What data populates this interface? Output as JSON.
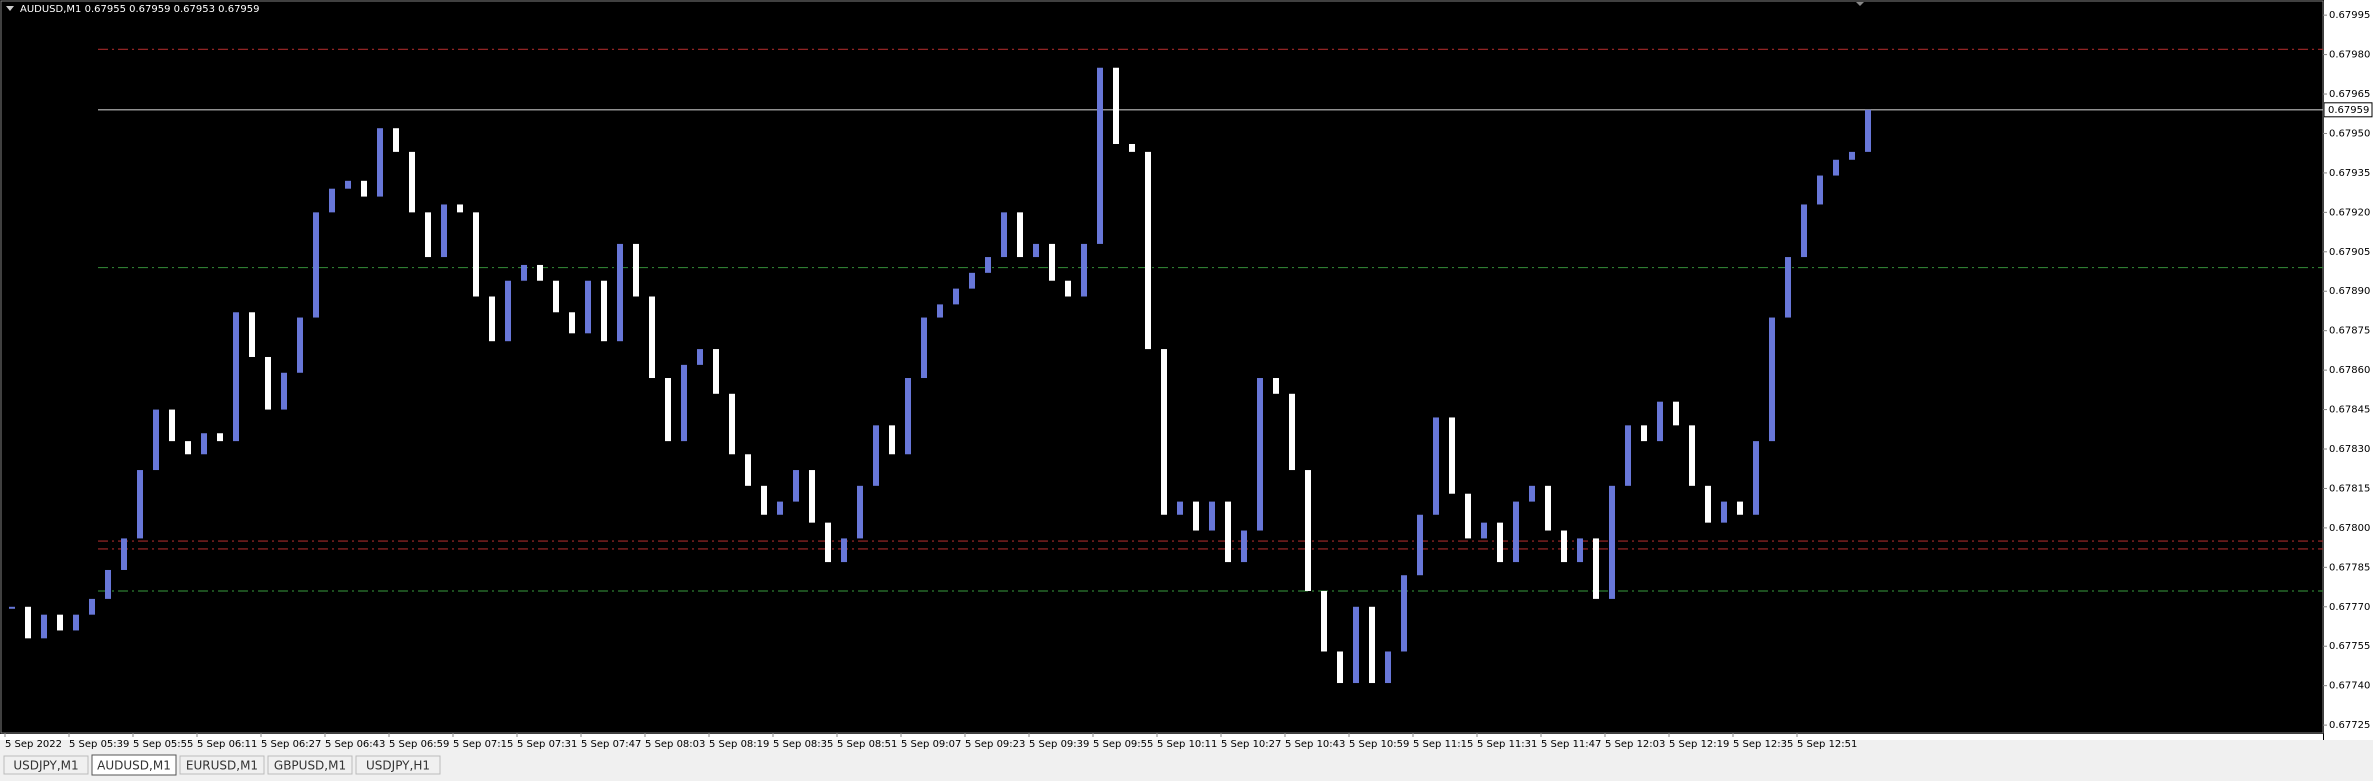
{
  "chart_data": {
    "type": "ohlc",
    "header": "AUDUSD,M1  0.67955 0.67959 0.67953 0.67959",
    "categories": [
      "5 Sep 2022",
      null,
      null,
      null,
      "5 Sep 05:39",
      null,
      null,
      null,
      "5 Sep 05:55",
      null,
      null,
      null,
      "5 Sep 06:11",
      null,
      null,
      null,
      "5 Sep 06:27",
      null,
      null,
      null,
      "5 Sep 06:43",
      null,
      null,
      null,
      "5 Sep 06:59",
      null,
      null,
      null,
      "5 Sep 07:15",
      null,
      null,
      null,
      "5 Sep 07:31",
      null,
      null,
      null,
      "5 Sep 07:47",
      null,
      null,
      null,
      "5 Sep 08:03",
      null,
      null,
      null,
      "5 Sep 08:19",
      null,
      null,
      null,
      "5 Sep 08:35",
      null,
      null,
      null,
      "5 Sep 08:51",
      null,
      null,
      null,
      "5 Sep 09:07",
      null,
      null,
      null,
      "5 Sep 09:23",
      null,
      null,
      null,
      "5 Sep 09:39",
      null,
      null,
      null,
      "5 Sep 09:55",
      null,
      null,
      null,
      "5 Sep 10:11",
      null,
      null,
      null,
      "5 Sep 10:27",
      null,
      null,
      null,
      "5 Sep 10:43",
      null,
      null,
      null,
      "5 Sep 10:59",
      null,
      null,
      null,
      "5 Sep 11:15",
      null,
      null,
      null,
      "5 Sep 11:31",
      null,
      null,
      null,
      "5 Sep 11:47",
      null,
      null,
      null,
      "5 Sep 12:03",
      null,
      null,
      null,
      "5 Sep 12:19",
      null,
      null,
      null,
      "5 Sep 12:35",
      null,
      null,
      null,
      "5 Sep 12:51",
      null,
      null,
      null,
      null
    ],
    "values": [
      0.6777,
      0.67758,
      0.67767,
      0.67761,
      0.67767,
      0.67773,
      0.67784,
      0.67796,
      0.67822,
      0.67845,
      0.67833,
      0.67828,
      0.67836,
      0.67833,
      0.67882,
      0.67865,
      0.67845,
      0.67859,
      0.6788,
      0.6792,
      0.67929,
      0.67932,
      0.67926,
      0.67952,
      0.67943,
      0.6792,
      0.67903,
      0.67923,
      0.6792,
      0.67888,
      0.67871,
      0.67894,
      0.679,
      0.67894,
      0.67882,
      0.67874,
      0.67894,
      0.67871,
      0.67908,
      0.67888,
      0.67857,
      0.67833,
      0.67862,
      0.67868,
      0.67851,
      0.67828,
      0.67816,
      0.67805,
      0.6781,
      0.67822,
      0.67802,
      0.67787,
      0.67796,
      0.67816,
      0.67839,
      0.67828,
      0.67857,
      0.6788,
      0.67885,
      0.67891,
      0.67897,
      0.67903,
      0.6792,
      0.67903,
      0.67908,
      0.67894,
      0.67888,
      0.67908,
      0.67975,
      0.67946,
      0.67943,
      0.67868,
      0.67805,
      0.6781,
      0.67799,
      0.6781,
      0.67787,
      0.67799,
      0.67857,
      0.67851,
      0.67822,
      0.67776,
      0.67753,
      0.67741,
      0.6777,
      0.67741,
      0.67753,
      0.67782,
      0.67805,
      0.67842,
      0.67813,
      0.67796,
      0.67802,
      0.67787,
      0.6781,
      0.67816,
      0.67799,
      0.67787,
      0.67796,
      0.67773,
      0.67816,
      0.67839,
      0.67833,
      0.67848,
      0.67839,
      0.67816,
      0.67802,
      0.6781,
      0.67805,
      0.67833,
      0.6788,
      0.67903,
      0.67923,
      0.67934,
      0.6794,
      0.67943,
      0.67959
    ],
    "up_color": "#6877d8",
    "down_color": "#ffffff",
    "ylim": [
      0.67722,
      0.68
    ],
    "yticks": [
      0.67995,
      {
        "value": 0.6798,
        "label": "0.67980"
      },
      0.67965,
      {
        "value": 0.6795,
        "label": "0.67950"
      },
      0.67935,
      {
        "value": 0.6792,
        "label": "0.67920"
      },
      0.67905,
      {
        "value": 0.6789,
        "label": "0.67890"
      },
      0.67875,
      {
        "value": 0.6786,
        "label": "0.67860"
      },
      0.67845,
      {
        "value": 0.6783,
        "label": "0.67830"
      },
      0.67815,
      {
        "value": 0.678,
        "label": "0.67800"
      },
      0.67785,
      {
        "value": 0.6777,
        "label": "0.67770"
      },
      0.67755,
      {
        "value": 0.6774,
        "label": "0.67740"
      },
      0.67725
    ],
    "price_label": 0.67959,
    "hlines": [
      {
        "value": 0.67982,
        "color": "#a52a2a",
        "style": "dashdot"
      },
      {
        "value": 0.67959,
        "color": "#c0c0c0",
        "style": "solid"
      },
      {
        "value": 0.67899,
        "color": "#2e7d32",
        "style": "dashdot"
      },
      {
        "value": 0.67795,
        "color": "#a52a2a",
        "style": "dashdot"
      },
      {
        "value": 0.67792,
        "color": "#a52a2a",
        "style": "dashdot"
      },
      {
        "value": 0.67776,
        "color": "#2e7d32",
        "style": "dashdot"
      }
    ]
  },
  "tabs": [
    "USDJPY,M1",
    "AUDUSD,M1",
    "EURUSD,M1",
    "GBPUSD,M1",
    "USDJPY,H1"
  ]
}
